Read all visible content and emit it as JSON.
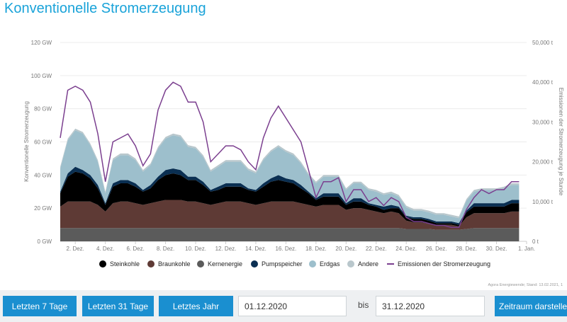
{
  "page": {
    "title": "Konventionelle Stromerzeugung"
  },
  "chart_data": {
    "type": "area",
    "title": "",
    "ylabel": "Konventionelle Stromerzeugung",
    "y2label": "Emissionen der Stromerzeugung je Stunde",
    "ylim": [
      0,
      120
    ],
    "y2lim": [
      0,
      50000
    ],
    "y_ticks": [
      "0 GW",
      "20 GW",
      "40 GW",
      "60 GW",
      "80 GW",
      "100 GW",
      "120 GW"
    ],
    "y2_ticks": [
      "0 t",
      "10,000 t",
      "20,000 t",
      "30,000 t",
      "40,000 t",
      "50,000 t"
    ],
    "x_ticks": [
      "2. Dez.",
      "4. Dez.",
      "6. Dez.",
      "8. Dez.",
      "10. Dez.",
      "12. Dez.",
      "14. Dez.",
      "16. Dez.",
      "18. Dez.",
      "20. Dez.",
      "22. Dez.",
      "24. Dez.",
      "26. Dez.",
      "28. Dez.",
      "30. Dez.",
      "1. Jan."
    ],
    "grid": true,
    "legend_position": "bottom",
    "x_days": [
      1,
      1.5,
      2,
      2.5,
      3,
      3.5,
      4,
      4.5,
      5,
      5.5,
      6,
      6.5,
      7,
      7.5,
      8,
      8.5,
      9,
      9.5,
      10,
      10.5,
      11,
      11.5,
      12,
      12.5,
      13,
      13.5,
      14,
      14.5,
      15,
      15.5,
      16,
      16.5,
      17,
      17.5,
      18,
      18.5,
      19,
      19.5,
      20,
      20.5,
      21,
      21.5,
      22,
      22.5,
      23,
      23.5,
      24,
      24.5,
      25,
      25.5,
      26,
      26.5,
      27,
      27.5,
      28,
      28.5,
      29,
      29.5,
      30,
      30.5,
      31,
      31.5
    ],
    "series": [
      {
        "name": "Kernenergie",
        "color": "#5b5b5b",
        "values": [
          8,
          8,
          8,
          8,
          8,
          8,
          8,
          8,
          8,
          8,
          8,
          8,
          8,
          8,
          8,
          8,
          8,
          8,
          8,
          8,
          8,
          8,
          8,
          8,
          8,
          8,
          8,
          8,
          8,
          8,
          8,
          8,
          8,
          8,
          8,
          8,
          8,
          8,
          8,
          8,
          8,
          8,
          8,
          8,
          8,
          8,
          7.5,
          7.5,
          7.5,
          7.5,
          7,
          7,
          7,
          7,
          7.5,
          8,
          8,
          8,
          8,
          8,
          8,
          8
        ]
      },
      {
        "name": "Braunkohle",
        "color": "#5e3a35",
        "values": [
          13,
          16,
          16,
          16,
          16,
          14,
          10,
          15,
          16,
          16,
          15,
          14,
          15,
          16,
          17,
          17,
          17,
          16,
          16,
          15,
          14,
          15,
          16,
          16,
          16,
          15,
          14,
          15,
          16,
          16,
          16,
          16,
          15,
          14,
          13,
          14,
          14,
          14,
          11,
          12,
          12,
          11,
          10,
          9,
          10,
          9,
          5,
          4,
          4,
          3,
          3,
          3,
          3,
          2,
          7,
          9,
          9,
          9,
          9,
          9,
          10,
          10
        ]
      },
      {
        "name": "Steinkohle",
        "color": "#000000",
        "values": [
          8,
          15,
          18,
          17,
          14,
          10,
          4,
          10,
          11,
          11,
          10,
          8,
          9,
          13,
          15,
          16,
          15,
          13,
          13,
          11,
          8,
          8,
          9,
          9,
          9,
          8,
          8,
          10,
          12,
          13,
          12,
          11,
          9,
          7,
          4,
          5,
          5,
          5,
          3,
          4,
          4,
          3,
          3,
          2,
          2,
          3,
          2,
          2,
          2,
          2,
          1,
          1,
          1,
          1,
          3,
          4,
          4,
          4,
          4,
          4,
          5,
          5
        ]
      },
      {
        "name": "Pumpspeicher",
        "color": "#0a2f52",
        "values": [
          1,
          2,
          3,
          2,
          2,
          2,
          1,
          2,
          2,
          2,
          2,
          1,
          2,
          2,
          3,
          3,
          3,
          2,
          2,
          2,
          1,
          2,
          2,
          2,
          2,
          1,
          1,
          2,
          2,
          3,
          2,
          2,
          2,
          1,
          1,
          2,
          2,
          2,
          1,
          2,
          2,
          1,
          1,
          2,
          2,
          1,
          1,
          1,
          1,
          1,
          1,
          1,
          1,
          1,
          1,
          2,
          2,
          2,
          2,
          2,
          2,
          2
        ]
      },
      {
        "name": "Erdgas",
        "color": "#9dbfcc",
        "values": [
          14,
          20,
          22,
          22,
          18,
          14,
          6,
          14,
          15,
          15,
          14,
          11,
          12,
          17,
          19,
          20,
          20,
          18,
          17,
          15,
          11,
          12,
          13,
          13,
          13,
          11,
          10,
          14,
          16,
          17,
          16,
          15,
          13,
          10,
          9,
          10,
          10,
          10,
          8,
          9,
          9,
          8,
          8,
          7,
          7,
          6,
          5,
          4,
          4,
          4,
          4,
          4,
          3,
          3,
          6,
          7,
          8,
          8,
          8,
          9,
          9,
          9
        ]
      },
      {
        "name": "Andere",
        "color": "#b9c7cc",
        "values": [
          1,
          1,
          1,
          1,
          1,
          1,
          1,
          1,
          1,
          1,
          1,
          1,
          1,
          1,
          1,
          1,
          1,
          1,
          1,
          1,
          1,
          1,
          1,
          1,
          1,
          1,
          1,
          1,
          1,
          1,
          1,
          1,
          1,
          1,
          1,
          1,
          1,
          1,
          1,
          1,
          1,
          1,
          1,
          1,
          1,
          1,
          1,
          1,
          1,
          1,
          1,
          1,
          1,
          1,
          1,
          1,
          1,
          1,
          1,
          1,
          1,
          1
        ]
      },
      {
        "name": "Emissionen der Stromerzeugung",
        "color": "#7b3f8f",
        "axis": "y2",
        "values": [
          26000,
          38000,
          39000,
          38000,
          35000,
          27000,
          15000,
          25000,
          26000,
          27000,
          24000,
          19000,
          22000,
          33000,
          38000,
          40000,
          39000,
          35000,
          35000,
          30000,
          20000,
          22000,
          24000,
          24000,
          23000,
          20000,
          18000,
          26000,
          31000,
          34000,
          31000,
          28000,
          25000,
          18000,
          11000,
          15000,
          15000,
          16000,
          10000,
          13000,
          13000,
          10000,
          11000,
          9000,
          11000,
          10000,
          6000,
          5000,
          5000,
          4500,
          4000,
          4000,
          3500,
          3500,
          8000,
          11000,
          13000,
          12000,
          13000,
          13000,
          15000,
          15000
        ]
      }
    ]
  },
  "legend": {
    "items": [
      {
        "label": "Steinkohle",
        "color": "#000000",
        "kind": "dot"
      },
      {
        "label": "Braunkohle",
        "color": "#5e3a35",
        "kind": "dot"
      },
      {
        "label": "Kernenergie",
        "color": "#5b5b5b",
        "kind": "dot"
      },
      {
        "label": "Pumpspeicher",
        "color": "#0a2f52",
        "kind": "dot"
      },
      {
        "label": "Erdgas",
        "color": "#9dbfcc",
        "kind": "dot"
      },
      {
        "label": "Andere",
        "color": "#b9c7cc",
        "kind": "dot"
      },
      {
        "label": "Emissionen der Stromerzeugung",
        "color": "#7b3f8f",
        "kind": "line"
      }
    ]
  },
  "source_note": "Agora Energiewende; Stand: 13.02.2021, 1",
  "controls": {
    "btn_7": "Letzten 7 Tage",
    "btn_31": "Letzten 31 Tage",
    "btn_year": "Letztes Jahr",
    "from_value": "01.12.2020",
    "bis": "bis",
    "to_value": "31.12.2020",
    "btn_range": "Zeitraum darstellen"
  }
}
